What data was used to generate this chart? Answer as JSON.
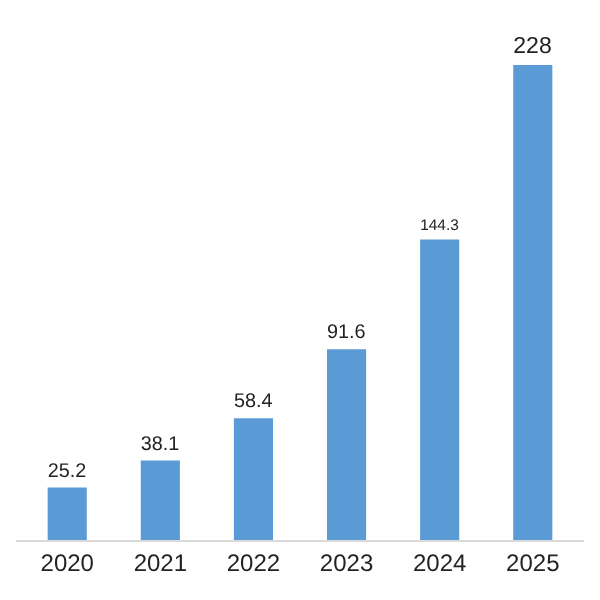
{
  "chart_data": {
    "type": "bar",
    "categories": [
      "2020",
      "2021",
      "2022",
      "2023",
      "2024",
      "2025"
    ],
    "values": [
      25.2,
      38.1,
      58.4,
      91.6,
      144.3,
      228
    ],
    "color": "#5b9bd5",
    "data_labels": true,
    "tick_labels": "x",
    "grid": false
  }
}
